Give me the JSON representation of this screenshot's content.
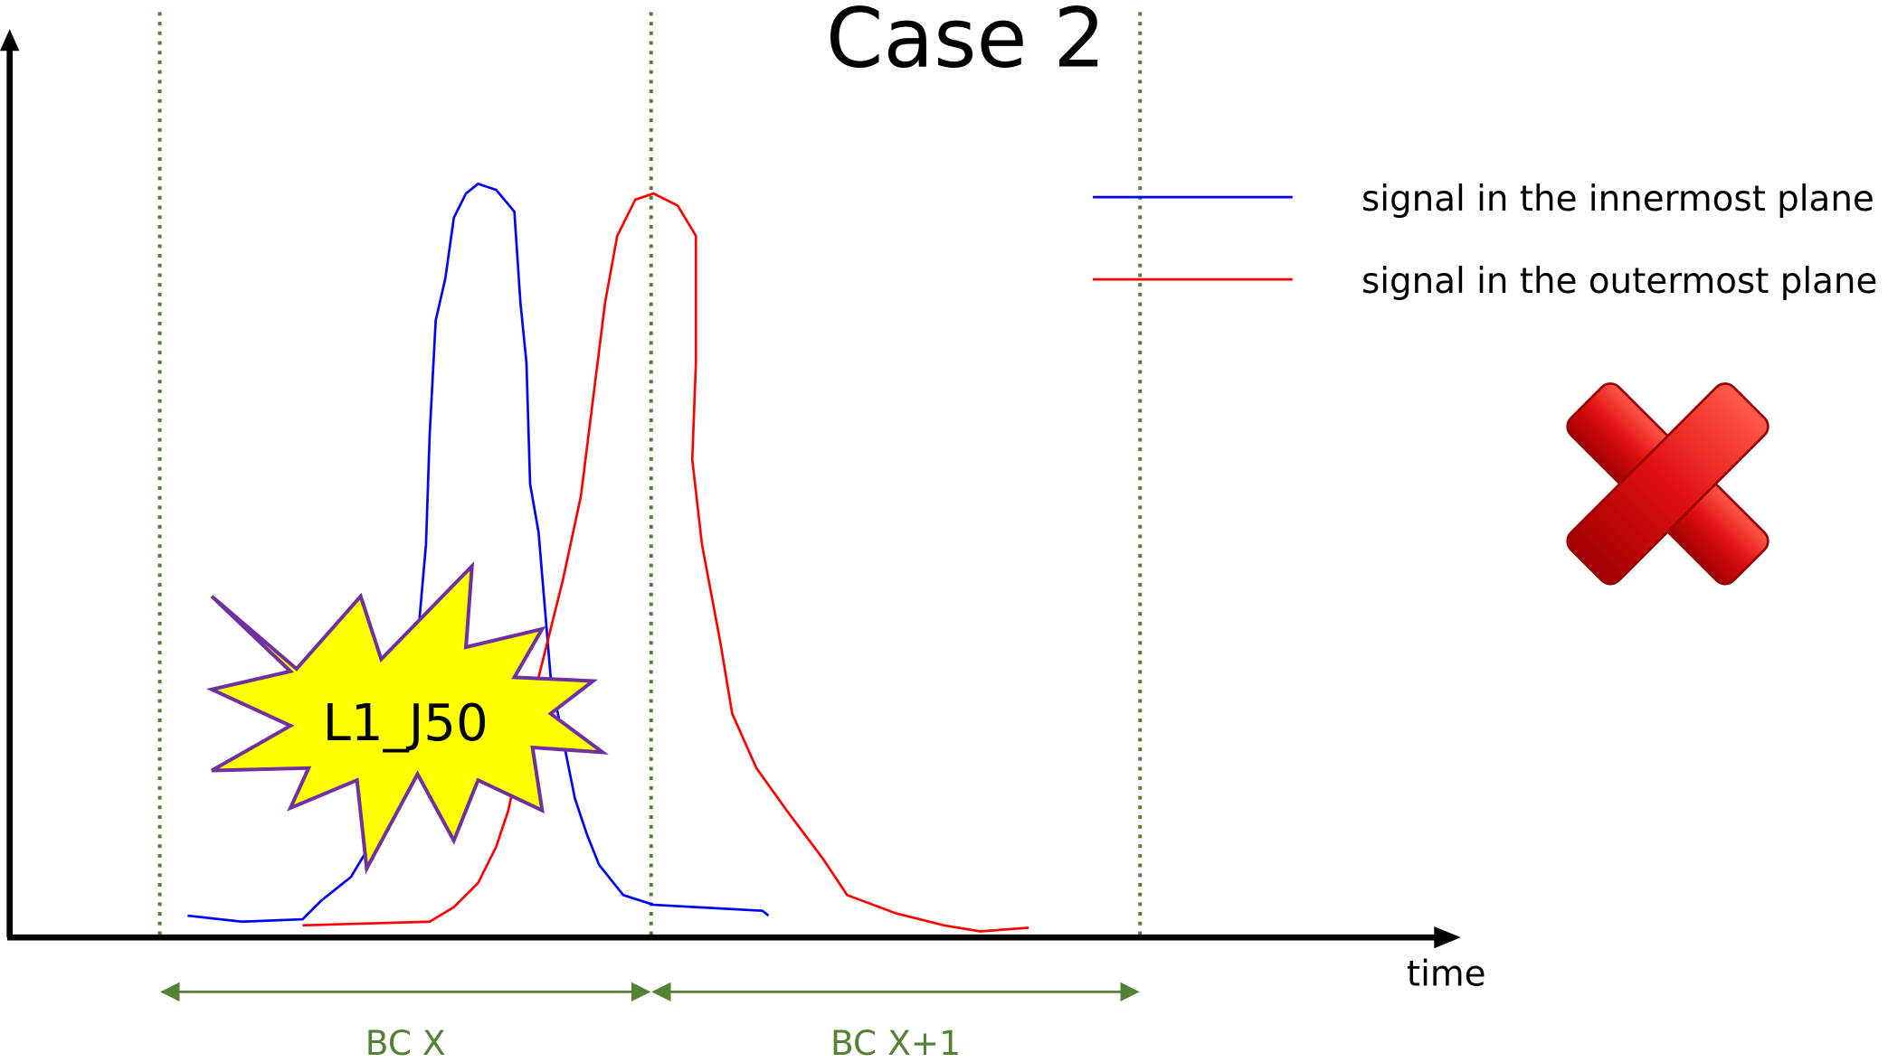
{
  "title": "Case 2",
  "legend": [
    {
      "label": "signal in the innermost plane"
    },
    {
      "label": "signal in the outermost plane"
    }
  ],
  "axis": {
    "x_label": "time"
  },
  "bunch_crossings": [
    "BC X",
    "BC X+1"
  ],
  "trigger": "L1_J50"
}
